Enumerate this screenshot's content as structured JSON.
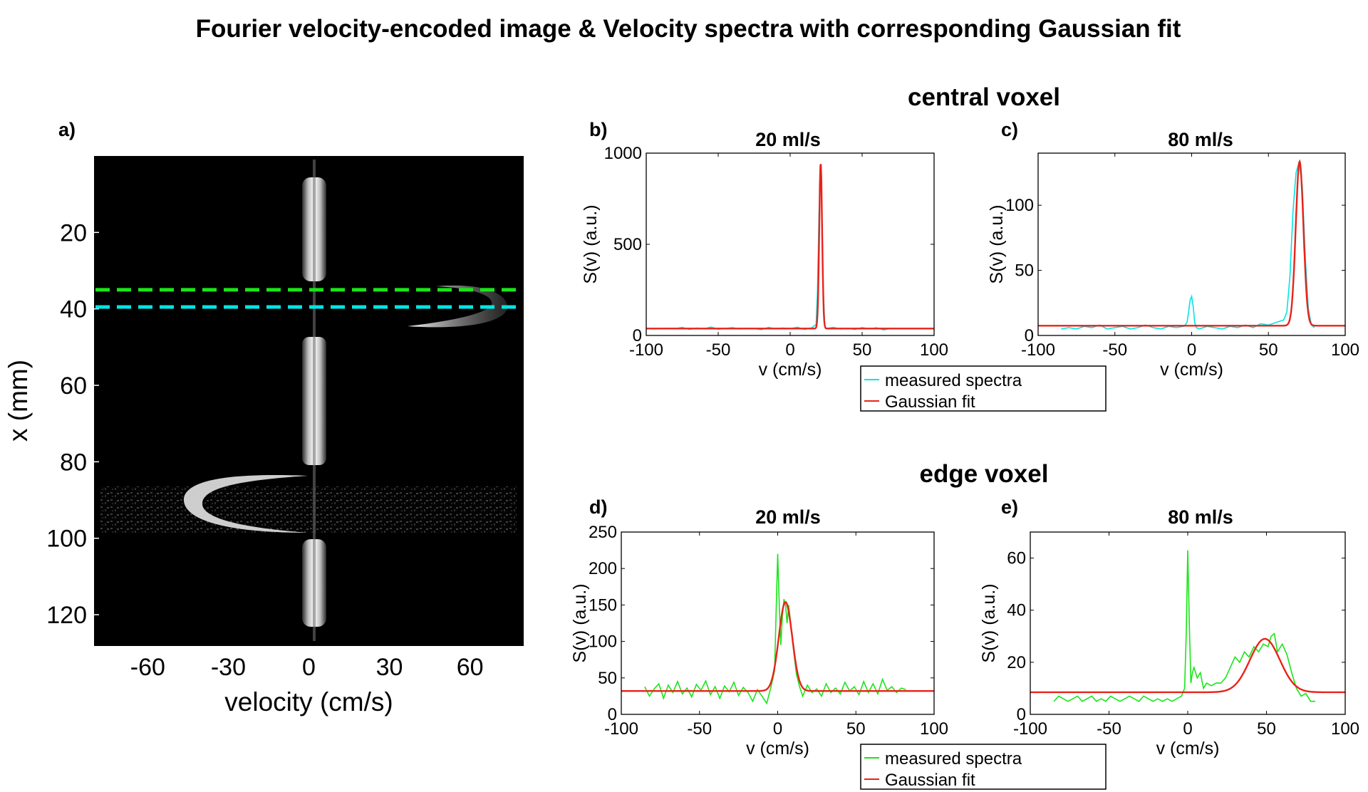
{
  "figure": {
    "title": "Fourier velocity-encoded image & Velocity spectra with corresponding Gaussian fit",
    "group_central": "central voxel",
    "group_edge": "edge voxel"
  },
  "colors": {
    "cyan": "#00e5e5",
    "green": "#19e619",
    "fit": "#e8231a",
    "image_bg": "#000000"
  },
  "legends": {
    "central": {
      "measured": "measured spectra",
      "fit": "Gaussian fit",
      "measured_color": "#00e5e5"
    },
    "edge": {
      "measured": "measured spectra",
      "fit": "Gaussian fit",
      "measured_color": "#19e619"
    }
  },
  "chart_data": [
    {
      "id": "a",
      "panel_label": "a)",
      "type": "heatmap",
      "title": "",
      "xlabel": "velocity (cm/s)",
      "ylabel": "x (mm)",
      "xlim": [
        -80,
        80
      ],
      "ylim": [
        0,
        128
      ],
      "xticks": [
        -60,
        -30,
        0,
        30,
        60
      ],
      "xtick_labels": [
        "-60",
        "-30",
        "0",
        "30",
        "60"
      ],
      "yticks": [
        20,
        40,
        60,
        80,
        100,
        120
      ],
      "ytick_labels": [
        "20",
        "40",
        "60",
        "80",
        "100",
        "120"
      ],
      "y_reversed": true,
      "lines": [
        {
          "name": "edge voxel row",
          "x_mm": 35,
          "color": "#19e619"
        },
        {
          "name": "central voxel row",
          "x_mm": 39.5,
          "color": "#00e5e5"
        }
      ]
    },
    {
      "id": "b",
      "panel_label": "b)",
      "type": "line",
      "title": "20 ml/s",
      "xlabel": "v (cm/s)",
      "ylabel": "S(v) (a.u.)",
      "xlim": [
        -100,
        100
      ],
      "ylim": [
        0,
        1000
      ],
      "xticks": [
        -100,
        -50,
        0,
        50,
        100
      ],
      "xtick_labels": [
        "-100",
        "-50",
        "0",
        "50",
        "100"
      ],
      "yticks": [
        0,
        500,
        1000
      ],
      "ytick_labels": [
        "0",
        "500",
        "1000"
      ],
      "series": [
        {
          "name": "measured spectra",
          "color": "#00e5e5",
          "x": [
            -85,
            -80,
            -75,
            -70,
            -65,
            -60,
            -55,
            -50,
            -45,
            -40,
            -35,
            -30,
            -25,
            -20,
            -15,
            -10,
            -5,
            0,
            5,
            10,
            15,
            18,
            19,
            20,
            21,
            22,
            23,
            24,
            25,
            30,
            35,
            40,
            45,
            50,
            55,
            60,
            65,
            70,
            75
          ],
          "y": [
            40,
            37,
            44,
            33,
            41,
            36,
            46,
            34,
            39,
            43,
            35,
            40,
            38,
            32,
            44,
            36,
            41,
            37,
            45,
            33,
            42,
            60,
            250,
            650,
            940,
            700,
            250,
            55,
            38,
            44,
            35,
            40,
            33,
            43,
            36,
            42,
            30,
            40,
            38
          ]
        },
        {
          "name": "Gaussian fit",
          "color": "#e8231a",
          "baseline": 38,
          "amplitude": 910,
          "center": 21.2,
          "sigma": 1.0,
          "x_range": [
            -100,
            100
          ]
        }
      ]
    },
    {
      "id": "c",
      "panel_label": "c)",
      "type": "line",
      "title": "80 ml/s",
      "xlabel": "v (cm/s)",
      "ylabel": "S(v) (a.u.)",
      "xlim": [
        -100,
        100
      ],
      "ylim": [
        0,
        140
      ],
      "xticks": [
        -100,
        -50,
        0,
        50,
        100
      ],
      "xtick_labels": [
        "-100",
        "-50",
        "0",
        "50",
        "100"
      ],
      "yticks": [
        0,
        50,
        100
      ],
      "ytick_labels": [
        "0",
        "50",
        "100"
      ],
      "series": [
        {
          "name": "measured spectra",
          "color": "#00e5e5",
          "x": [
            -85,
            -80,
            -75,
            -70,
            -65,
            -60,
            -55,
            -50,
            -45,
            -40,
            -35,
            -30,
            -25,
            -20,
            -15,
            -10,
            -5,
            -3,
            -2,
            -1,
            0,
            1,
            2,
            3,
            5,
            10,
            15,
            20,
            25,
            30,
            35,
            40,
            45,
            50,
            55,
            60,
            62,
            64,
            66,
            68,
            70,
            72,
            74,
            76,
            78,
            80
          ],
          "y": [
            5,
            6,
            5,
            7,
            6,
            8,
            5,
            6,
            7,
            5,
            6,
            8,
            6,
            5,
            7,
            6,
            7,
            10,
            18,
            27,
            30,
            22,
            10,
            6,
            5,
            7,
            6,
            5,
            7,
            6,
            8,
            6,
            9,
            8,
            10,
            12,
            18,
            45,
            95,
            125,
            133,
            115,
            60,
            20,
            8,
            6
          ]
        },
        {
          "name": "Gaussian fit",
          "color": "#e8231a",
          "baseline": 7.5,
          "amplitude": 126,
          "center": 70.3,
          "sigma": 2.5,
          "x_range": [
            -100,
            100
          ]
        }
      ]
    },
    {
      "id": "d",
      "panel_label": "d)",
      "type": "line",
      "title": "20 ml/s",
      "xlabel": "v (cm/s)",
      "ylabel": "S(v) (a.u.)",
      "xlim": [
        -100,
        100
      ],
      "ylim": [
        0,
        250
      ],
      "xticks": [
        -100,
        -50,
        0,
        50,
        100
      ],
      "xtick_labels": [
        "-100",
        "-50",
        "0",
        "50",
        "100"
      ],
      "yticks": [
        0,
        50,
        100,
        150,
        200,
        250
      ],
      "ytick_labels": [
        "0",
        "50",
        "100",
        "150",
        "200",
        "250"
      ],
      "series": [
        {
          "name": "measured spectra",
          "color": "#19e619",
          "x": [
            -85,
            -82,
            -79,
            -76,
            -73,
            -70,
            -67,
            -64,
            -61,
            -58,
            -55,
            -52,
            -49,
            -46,
            -43,
            -40,
            -37,
            -34,
            -31,
            -28,
            -25,
            -22,
            -19,
            -16,
            -13,
            -10,
            -7,
            -4,
            -2,
            0,
            1,
            2,
            3,
            4,
            5,
            6,
            7,
            8,
            10,
            12,
            14,
            16,
            19,
            22,
            25,
            28,
            31,
            34,
            37,
            40,
            43,
            46,
            49,
            52,
            55,
            58,
            61,
            64,
            67,
            70,
            73,
            76,
            79,
            82
          ],
          "y": [
            38,
            25,
            35,
            42,
            22,
            40,
            30,
            45,
            28,
            36,
            24,
            41,
            33,
            46,
            27,
            38,
            22,
            39,
            31,
            44,
            26,
            37,
            30,
            18,
            34,
            25,
            15,
            40,
            60,
            220,
            150,
            95,
            135,
            158,
            150,
            125,
            150,
            130,
            90,
            55,
            38,
            25,
            40,
            30,
            35,
            25,
            42,
            30,
            36,
            28,
            44,
            32,
            38,
            27,
            45,
            30,
            42,
            28,
            48,
            33,
            38,
            30,
            36,
            34
          ]
        },
        {
          "name": "Gaussian fit",
          "color": "#e8231a",
          "baseline": 32,
          "amplitude": 122,
          "center": 5.0,
          "sigma": 4.3,
          "x_range": [
            -100,
            100
          ]
        }
      ]
    },
    {
      "id": "e",
      "panel_label": "e)",
      "type": "line",
      "title": "80 ml/s",
      "xlabel": "v (cm/s)",
      "ylabel": "S(v) (a.u.)",
      "xlim": [
        -100,
        100
      ],
      "ylim": [
        0,
        70
      ],
      "xticks": [
        -100,
        -50,
        0,
        50,
        100
      ],
      "xtick_labels": [
        "-100",
        "-50",
        "0",
        "50",
        "100"
      ],
      "yticks": [
        0,
        20,
        40,
        60
      ],
      "ytick_labels": [
        "0",
        "20",
        "40",
        "60"
      ],
      "series": [
        {
          "name": "measured spectra",
          "color": "#19e619",
          "x": [
            -85,
            -82,
            -79,
            -76,
            -73,
            -70,
            -67,
            -64,
            -61,
            -58,
            -55,
            -52,
            -49,
            -46,
            -43,
            -40,
            -37,
            -34,
            -31,
            -28,
            -25,
            -22,
            -19,
            -16,
            -13,
            -10,
            -7,
            -4,
            -2,
            -1,
            0,
            1,
            2,
            3,
            4,
            6,
            8,
            10,
            12,
            15,
            18,
            21,
            24,
            27,
            30,
            33,
            36,
            39,
            42,
            45,
            48,
            51,
            53,
            55,
            57,
            60,
            63,
            66,
            69,
            72,
            75,
            78,
            81
          ],
          "y": [
            5,
            7,
            6,
            5,
            6,
            7,
            5,
            6,
            7,
            5,
            6,
            5,
            7,
            6,
            5,
            6,
            7,
            6,
            5,
            7,
            6,
            5,
            6,
            5,
            6,
            5,
            6,
            7,
            10,
            30,
            63,
            35,
            12,
            16,
            18,
            14,
            16,
            10,
            12,
            11,
            12,
            12,
            14,
            18,
            22,
            20,
            24,
            22,
            26,
            24,
            27,
            26,
            30,
            31,
            24,
            27,
            23,
            16,
            10,
            7,
            8,
            5,
            5
          ]
        },
        {
          "name": "Gaussian fit",
          "color": "#e8231a",
          "baseline": 8.5,
          "amplitude": 20.5,
          "center": 49.0,
          "sigma": 9.5,
          "x_range": [
            -100,
            100
          ]
        }
      ]
    }
  ]
}
